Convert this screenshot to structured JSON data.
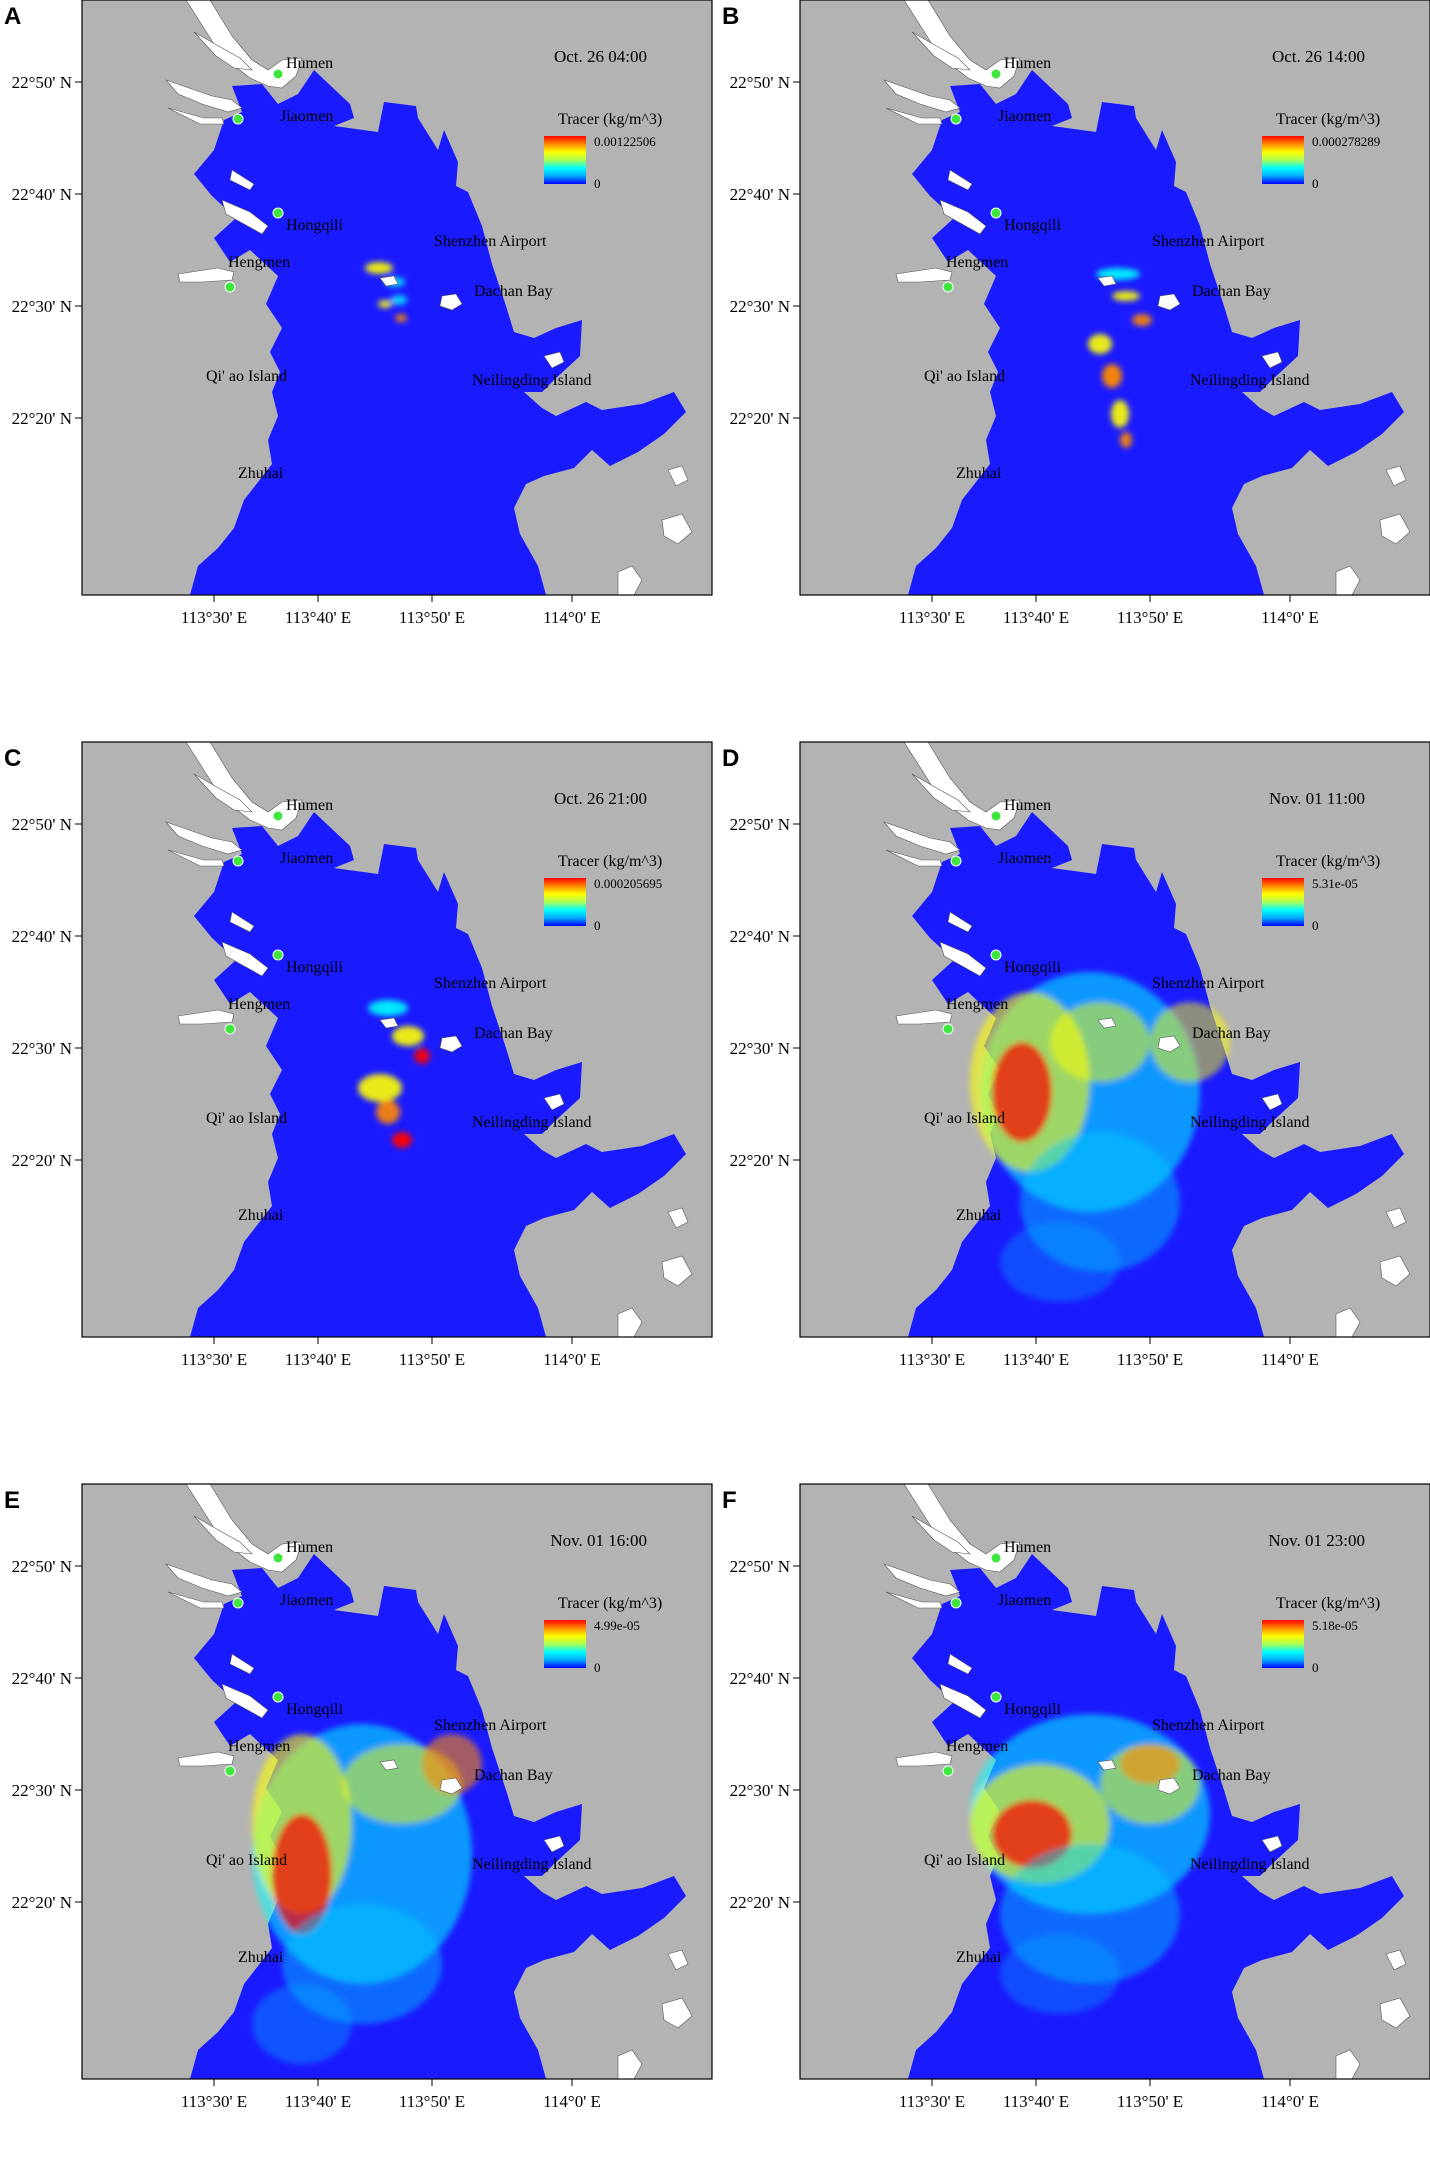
{
  "figure": {
    "lon_ticks": [
      "113°30' E",
      "113°40' E",
      "113°50' E",
      "114°0' E"
    ],
    "lat_ticks": [
      "22°50' N",
      "22°40' N",
      "22°30' N",
      "22°20' N"
    ],
    "places": [
      {
        "id": "humen",
        "label": "Humen"
      },
      {
        "id": "jiaomen",
        "label": "Jiaomen"
      },
      {
        "id": "hongqili",
        "label": "Hongqili"
      },
      {
        "id": "hengmen",
        "label": "Hengmen"
      },
      {
        "id": "shenzhen-airport",
        "label": "Shenzhen Airport"
      },
      {
        "id": "dachan-bay",
        "label": "Dachan Bay"
      },
      {
        "id": "qiao-island",
        "label": "Qi' ao Island"
      },
      {
        "id": "neilingding-island",
        "label": "Neilingding Island"
      },
      {
        "id": "zhuhai",
        "label": "Zhuhai"
      }
    ],
    "legend_title": "Tracer (kg/m^3)",
    "legend_min": "0",
    "colors": {
      "land": "#b3b3b3",
      "water": "#1a1aff",
      "river": "#ffffff",
      "station": "#3ee63e"
    },
    "colormap": [
      "#0000ff",
      "#00aaff",
      "#00ffff",
      "#aaff55",
      "#ffff00",
      "#ff8800",
      "#ff0000"
    ]
  },
  "panels": [
    {
      "label": "A",
      "time": "Oct. 26 04:00",
      "legend_max": "0.00122506",
      "stage": 0
    },
    {
      "label": "B",
      "time": "Oct. 26 14:00",
      "legend_max": "0.000278289",
      "stage": 1
    },
    {
      "label": "C",
      "time": "Oct. 26 21:00",
      "legend_max": "0.000205695",
      "stage": 2
    },
    {
      "label": "D",
      "time": "Nov. 01 11:00",
      "legend_max": "5.31e-05",
      "stage": 3
    },
    {
      "label": "E",
      "time": "Nov. 01 16:00",
      "legend_max": "4.99e-05",
      "stage": 4
    },
    {
      "label": "F",
      "time": "Nov. 01 23:00",
      "legend_max": "5.18e-05",
      "stage": 5
    }
  ]
}
